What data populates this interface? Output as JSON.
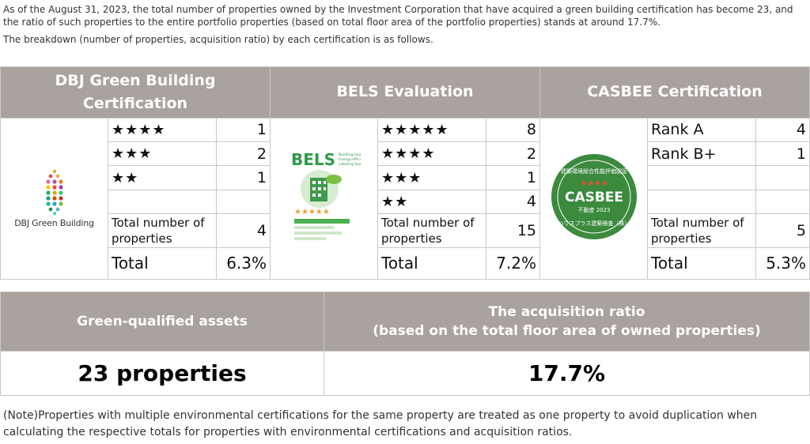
{
  "intro": {
    "line1": "As of the August 31, 2023, the total number of properties owned by the Investment Corporation that have acquired a green building certification has become 23, and the ratio of such properties to the entire portfolio properties (based on total floor area of the portfolio properties) stands at around 17.7%.",
    "line2": "The breakdown (number of properties, acquisition ratio) by each certification is as follows."
  },
  "certifications": {
    "dbj": {
      "header": "DBJ Green Building Certification",
      "logo_text": "DBJ Green Building",
      "rows": [
        {
          "label": "★★★★",
          "value": "1"
        },
        {
          "label": "★★★",
          "value": "2"
        },
        {
          "label": "★★",
          "value": "1"
        },
        {
          "label": "",
          "value": ""
        }
      ],
      "total_props_label": "Total number of properties",
      "total_props_value": "4",
      "total_label": "Total",
      "total_value": "6.3%"
    },
    "bels": {
      "header": "BELS Evaluation",
      "logo_text": "BELS",
      "logo_sub": "Building-housing Energy-efficiency Labeling System",
      "rows": [
        {
          "label": "★★★★★",
          "value": "8"
        },
        {
          "label": "★★★★",
          "value": "2"
        },
        {
          "label": "★★★",
          "value": "1"
        },
        {
          "label": "★★",
          "value": "4"
        }
      ],
      "total_props_label": "Total number of properties",
      "total_props_value": "15",
      "total_label": "Total",
      "total_value": "7.2%"
    },
    "casbee": {
      "header": "CASBEE Certification",
      "logo_text": "CASBEE",
      "logo_top": "建築環境総合性能評価認証",
      "logo_stars": "★★★★",
      "logo_year": "不動産 2023",
      "logo_bottom": "ハウスプラス建築検査（株）",
      "rows": [
        {
          "label": "Rank A",
          "value": "4"
        },
        {
          "label": "Rank B+",
          "value": "1"
        },
        {
          "label": "",
          "value": ""
        },
        {
          "label": "",
          "value": ""
        }
      ],
      "total_props_label": "Total number of properties",
      "total_props_value": "5",
      "total_label": "Total",
      "total_value": "5.3%"
    }
  },
  "summary": {
    "col1_header": "Green-qualified assets",
    "col2_header_line1": "The acquisition ratio",
    "col2_header_line2": "(based on the total floor area of owned properties)",
    "col1_value": "23 properties",
    "col2_value": "17.7%"
  },
  "note": "(Note)Properties with multiple environmental certifications for the same property are treated as one property to avoid duplication when calculating the respective totals for properties with environmental certifications and acquisition ratios.",
  "colors": {
    "header_bg": "#a9a29f",
    "casbee_green": "#3b8a3e",
    "bels_green": "#4caf50"
  }
}
